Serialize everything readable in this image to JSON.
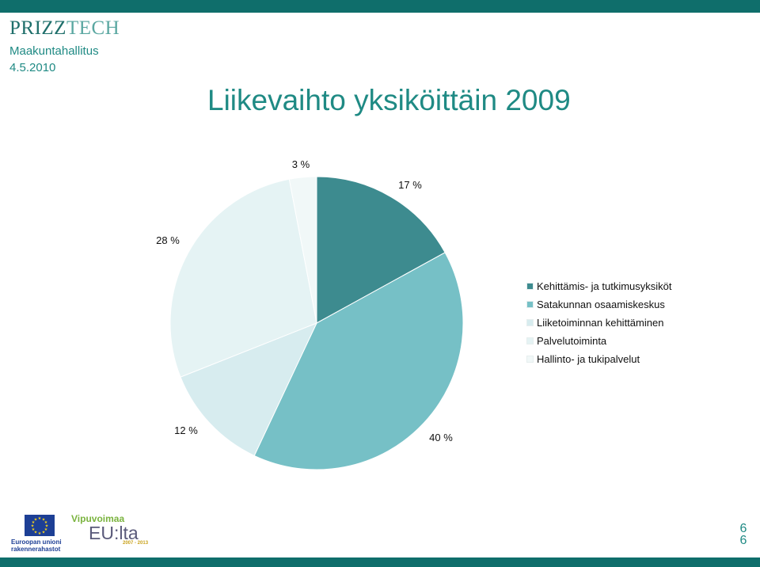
{
  "header": {
    "brand_part1": "PRIZZ",
    "brand_part2": "TECH",
    "subtitle": "Maakuntahallitus",
    "date": "4.5.2010"
  },
  "colors": {
    "bar": "#0f6e6b",
    "brand": "#1f6f6b",
    "accent": "#1f8a84"
  },
  "chart_data": {
    "type": "pie",
    "title": "Liikevaihto yksiköittäin 2009",
    "start": "12 o'clock",
    "direction": "clockwise",
    "slices": [
      {
        "label": "Kehittämis- ja tutkimusyksiköt",
        "value": 17,
        "display": "17 %",
        "color": "#3d8b8f"
      },
      {
        "label": "Satakunnan osaamiskeskus",
        "value": 40,
        "display": "40 %",
        "color": "#76c0c6"
      },
      {
        "label": "Liiketoiminnan kehittäminen",
        "value": 12,
        "display": "12 %",
        "color": "#d7ecef"
      },
      {
        "label": "Palvelutoiminta",
        "value": 28,
        "display": "28 %",
        "color": "#e5f3f4"
      },
      {
        "label": "Hallinto- ja tukipalvelut",
        "value": 3,
        "display": "3 %",
        "color": "#f1f8f8"
      }
    ],
    "legend_position": "right"
  },
  "footer": {
    "eu_text_line1": "Euroopan unioni",
    "eu_text_line2": "rakennerahastot",
    "vipu_text": "Vipuvoimaa",
    "eulta_text": "EU:lta",
    "years_text": "2007 - 2013",
    "page_number_1": "6",
    "page_number_2": "6"
  }
}
